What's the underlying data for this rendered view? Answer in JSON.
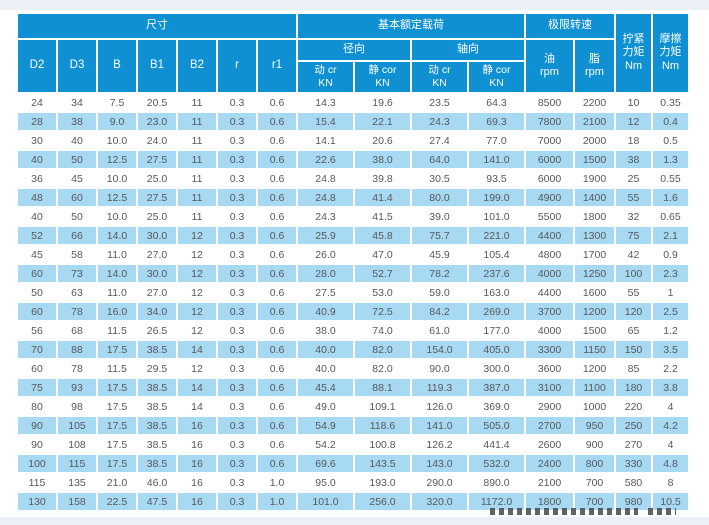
{
  "colors": {
    "header_bg": "#0e90d3",
    "stripe_bg": "#a7d9f3",
    "band_bg": "#ebf1f7",
    "text": "#57585a"
  },
  "table": {
    "header": {
      "group_size": "尺寸",
      "group_load": "基本额定载荷",
      "group_speed": "极限转速",
      "tighten": {
        "l1": "拧紧",
        "l2": "力矩",
        "l3": "Nm"
      },
      "friction": {
        "l1": "摩擦",
        "l2": "力矩",
        "l3": "Nm"
      },
      "sub_radial": "径向",
      "sub_axial": "轴向",
      "dims": [
        "D2",
        "D3",
        "B",
        "B1",
        "B2",
        "r",
        "r1"
      ],
      "load_cols": [
        {
          "l1": "动 cr",
          "l2": "KN"
        },
        {
          "l1": "静 cor",
          "l2": "KN"
        },
        {
          "l1": "动 cr",
          "l2": "KN"
        },
        {
          "l1": "静 cor",
          "l2": "KN"
        }
      ],
      "speed_cols": [
        {
          "l1": "油",
          "l2": "rpm"
        },
        {
          "l1": "脂",
          "l2": "rpm"
        }
      ]
    },
    "rows": [
      [
        "24",
        "34",
        "7.5",
        "20.5",
        "11",
        "0.3",
        "0.6",
        "14.3",
        "19.6",
        "23.5",
        "64.3",
        "8500",
        "2200",
        "10",
        "0.35"
      ],
      [
        "28",
        "38",
        "9.0",
        "23.0",
        "11",
        "0.3",
        "0.6",
        "15.4",
        "22.1",
        "24.3",
        "69.3",
        "7800",
        "2100",
        "12",
        "0.4"
      ],
      [
        "30",
        "40",
        "10.0",
        "24.0",
        "11",
        "0.3",
        "0.6",
        "14.1",
        "20.6",
        "27.4",
        "77.0",
        "7000",
        "2000",
        "18",
        "0.5"
      ],
      [
        "40",
        "50",
        "12.5",
        "27.5",
        "11",
        "0.3",
        "0.6",
        "22.6",
        "38.0",
        "64.0",
        "141.0",
        "6000",
        "1500",
        "38",
        "1.3"
      ],
      [
        "36",
        "45",
        "10.0",
        "25.0",
        "11",
        "0.3",
        "0.6",
        "24.8",
        "39.8",
        "30.5",
        "93.5",
        "6000",
        "1900",
        "25",
        "0.55"
      ],
      [
        "48",
        "60",
        "12.5",
        "27.5",
        "11",
        "0.3",
        "0.6",
        "24.8",
        "41.4",
        "80.0",
        "199.0",
        "4900",
        "1400",
        "55",
        "1.6"
      ],
      [
        "40",
        "50",
        "10.0",
        "25.0",
        "11",
        "0.3",
        "0.6",
        "24.3",
        "41.5",
        "39.0",
        "101.0",
        "5500",
        "1800",
        "32",
        "0.65"
      ],
      [
        "52",
        "66",
        "14.0",
        "30.0",
        "12",
        "0.3",
        "0.6",
        "25.9",
        "45.8",
        "75.7",
        "221.0",
        "4400",
        "1300",
        "75",
        "2.1"
      ],
      [
        "45",
        "58",
        "11.0",
        "27.0",
        "12",
        "0.3",
        "0.6",
        "26.0",
        "47.0",
        "45.9",
        "105.4",
        "4800",
        "1700",
        "42",
        "0.9"
      ],
      [
        "60",
        "73",
        "14.0",
        "30.0",
        "12",
        "0.3",
        "0.6",
        "28.0",
        "52.7",
        "78.2",
        "237.6",
        "4000",
        "1250",
        "100",
        "2.3"
      ],
      [
        "50",
        "63",
        "11.0",
        "27.0",
        "12",
        "0.3",
        "0.6",
        "27.5",
        "53.0",
        "59.0",
        "163.0",
        "4400",
        "1600",
        "55",
        "1"
      ],
      [
        "60",
        "78",
        "16.0",
        "34.0",
        "12",
        "0.3",
        "0.6",
        "40.9",
        "72.5",
        "84.2",
        "269.0",
        "3700",
        "1200",
        "120",
        "2.5"
      ],
      [
        "56",
        "68",
        "11.5",
        "26.5",
        "12",
        "0.3",
        "0.6",
        "38.0",
        "74.0",
        "61.0",
        "177.0",
        "4000",
        "1500",
        "65",
        "1.2"
      ],
      [
        "70",
        "88",
        "17.5",
        "38.5",
        "14",
        "0.3",
        "0.6",
        "40.0",
        "82.0",
        "154.0",
        "405.0",
        "3300",
        "1150",
        "150",
        "3.5"
      ],
      [
        "60",
        "78",
        "11.5",
        "29.5",
        "12",
        "0.3",
        "0.6",
        "40.0",
        "82.0",
        "90.0",
        "300.0",
        "3600",
        "1200",
        "85",
        "2.2"
      ],
      [
        "75",
        "93",
        "17.5",
        "38.5",
        "14",
        "0.3",
        "0.6",
        "45.4",
        "88.1",
        "119.3",
        "387.0",
        "3100",
        "1100",
        "180",
        "3.8"
      ],
      [
        "80",
        "98",
        "17.5",
        "38.5",
        "14",
        "0.3",
        "0.6",
        "49.0",
        "109.1",
        "126.0",
        "369.0",
        "2900",
        "1000",
        "220",
        "4"
      ],
      [
        "90",
        "105",
        "17.5",
        "38.5",
        "16",
        "0.3",
        "0.6",
        "54.9",
        "118.6",
        "141.0",
        "505.0",
        "2700",
        "950",
        "250",
        "4.2"
      ],
      [
        "90",
        "108",
        "17.5",
        "38.5",
        "16",
        "0.3",
        "0.6",
        "54.2",
        "100.8",
        "126.2",
        "441.4",
        "2600",
        "900",
        "270",
        "4"
      ],
      [
        "100",
        "115",
        "17.5",
        "38.5",
        "16",
        "0.3",
        "0.6",
        "69.6",
        "143.5",
        "143.0",
        "532.0",
        "2400",
        "800",
        "330",
        "4.8"
      ],
      [
        "115",
        "135",
        "21.0",
        "46.0",
        "16",
        "0.3",
        "1.0",
        "95.0",
        "193.0",
        "290.0",
        "890.0",
        "2100",
        "700",
        "580",
        "8"
      ],
      [
        "130",
        "158",
        "22.5",
        "47.5",
        "16",
        "0.3",
        "1.0",
        "101.0",
        "256.0",
        "320.0",
        "1172.0",
        "1800",
        "700",
        "980",
        "10.5"
      ]
    ]
  }
}
